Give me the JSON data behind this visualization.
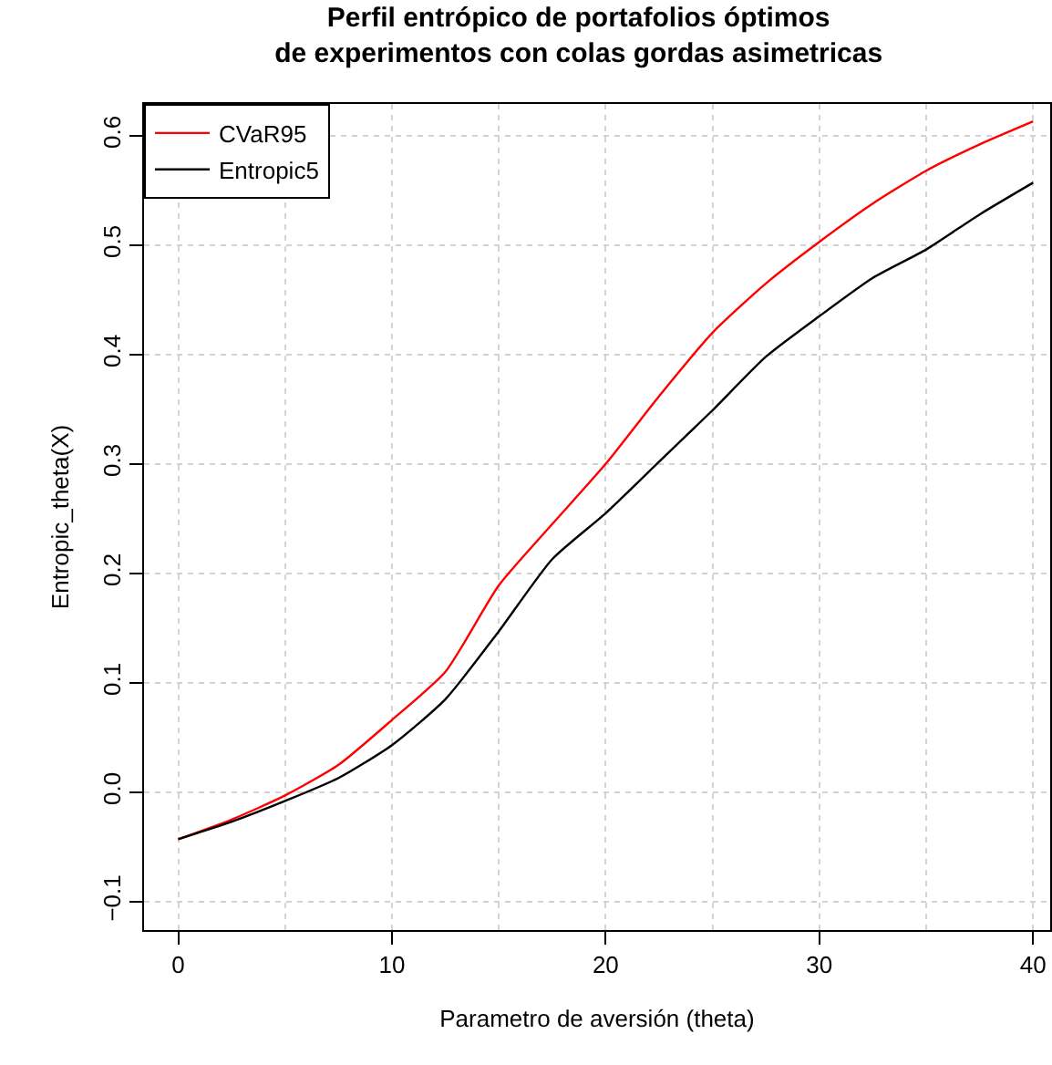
{
  "chart_data": {
    "type": "line",
    "title": "Perfil entrópico de portafolios óptimos\nde experimentos con colas gordas asimetricas",
    "xlabel": "Parametro de aversión (theta)",
    "ylabel": "Entropic_theta(X)",
    "x": [
      0,
      2.5,
      5,
      7.5,
      10,
      12.5,
      15,
      17.5,
      20,
      22.5,
      25,
      27.5,
      30,
      32.5,
      35,
      37.5,
      40
    ],
    "series": [
      {
        "name": "CVaR95",
        "color": "#ff0000",
        "values": [
          -0.043,
          -0.025,
          -0.003,
          0.025,
          0.066,
          0.11,
          0.189,
          0.245,
          0.3,
          0.362,
          0.42,
          0.465,
          0.503,
          0.538,
          0.568,
          0.592,
          0.613
        ]
      },
      {
        "name": "Entropic5",
        "color": "#000000",
        "values": [
          -0.043,
          -0.027,
          -0.008,
          0.013,
          0.043,
          0.085,
          0.147,
          0.213,
          0.255,
          0.302,
          0.349,
          0.398,
          0.435,
          0.47,
          0.496,
          0.528,
          0.557
        ]
      }
    ],
    "xlim": [
      -1.6,
      40.8
    ],
    "ylim": [
      -0.126,
      0.629
    ],
    "xticks": [
      0,
      10,
      20,
      30,
      40
    ],
    "yticks": [
      -0.1,
      {
        "value": 0,
        "label": "0.0"
      },
      0.1,
      0.2,
      0.3,
      0.4,
      0.5,
      0.6
    ],
    "grid": true,
    "legend": "top left",
    "marker": "none",
    "line_style": "solid"
  }
}
